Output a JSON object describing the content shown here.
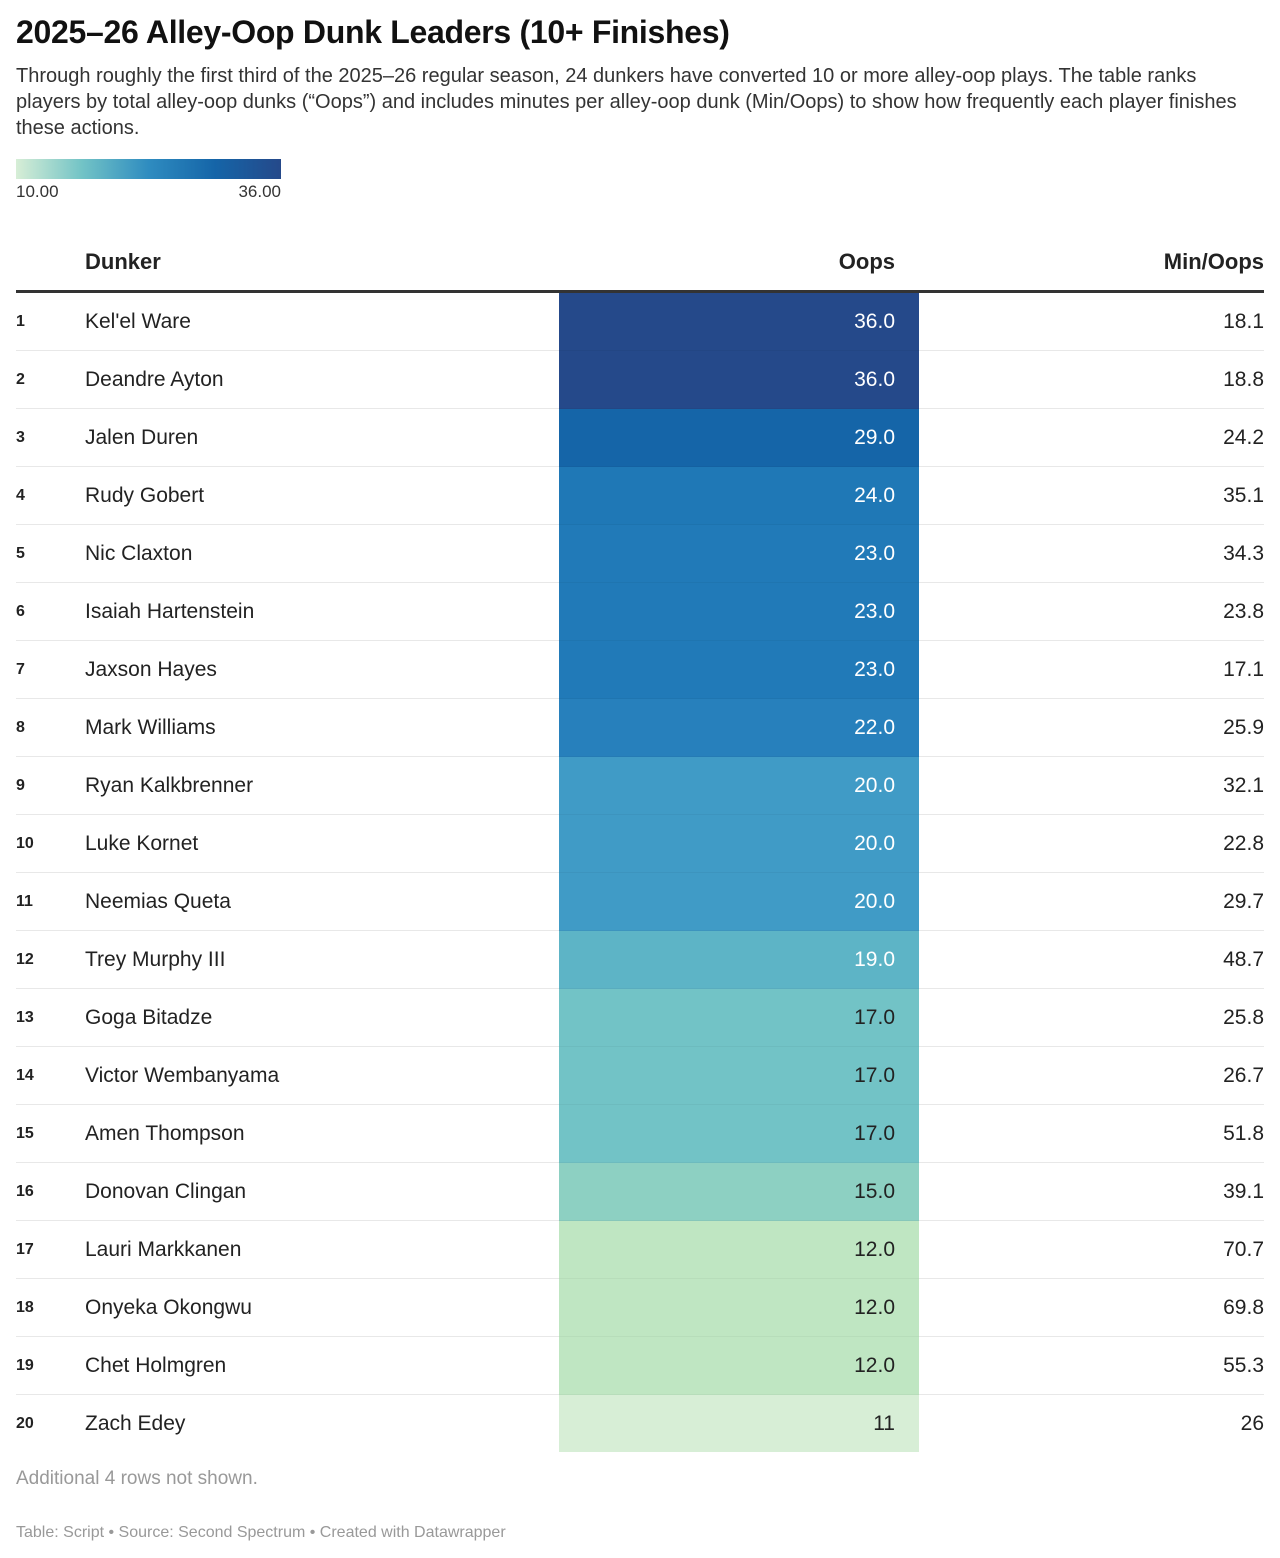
{
  "title": "2025–26 Alley-Oop Dunk Leaders (10+ Finishes)",
  "description": "Through roughly the first third of the 2025–26 regular season, 24 dunkers have converted 10 or more alley-oop plays. The table ranks players by total alley-oop dunks (“Oops”) and includes minutes per alley-oop dunk (Min/Oops) to show how frequently each player finishes these actions.",
  "legend": {
    "min": "10.00",
    "max": "36.00",
    "colors": [
      "#d7eed6",
      "#72c3c6",
      "#2f8cc0",
      "#1565a8",
      "#25498a"
    ]
  },
  "columns": {
    "dunker": "Dunker",
    "oops": "Oops",
    "min_oops": "Min/Oops"
  },
  "note": "Additional 4 rows not shown.",
  "footer": "Table: Script • Source: Second Spectrum • Created with Datawrapper",
  "chart_data": {
    "type": "table",
    "columns": [
      "",
      "Dunker",
      "Oops",
      "Min/Oops"
    ],
    "rows": [
      {
        "rank": "1",
        "name": "Kel'el Ware",
        "oops": "36.0",
        "min": "18.1",
        "color": "#25498a",
        "text": "#fff"
      },
      {
        "rank": "2",
        "name": "Deandre Ayton",
        "oops": "36.0",
        "min": "18.8",
        "color": "#25498a",
        "text": "#fff"
      },
      {
        "rank": "3",
        "name": "Jalen Duren",
        "oops": "29.0",
        "min": "24.2",
        "color": "#1565a8",
        "text": "#fff"
      },
      {
        "rank": "4",
        "name": "Rudy Gobert",
        "oops": "24.0",
        "min": "35.1",
        "color": "#1f78b6",
        "text": "#fff"
      },
      {
        "rank": "5",
        "name": "Nic Claxton",
        "oops": "23.0",
        "min": "34.3",
        "color": "#217ab8",
        "text": "#fff"
      },
      {
        "rank": "6",
        "name": "Isaiah Hartenstein",
        "oops": "23.0",
        "min": "23.8",
        "color": "#217ab8",
        "text": "#fff"
      },
      {
        "rank": "7",
        "name": "Jaxson Hayes",
        "oops": "23.0",
        "min": "17.1",
        "color": "#217ab8",
        "text": "#fff"
      },
      {
        "rank": "8",
        "name": "Mark Williams",
        "oops": "22.0",
        "min": "25.9",
        "color": "#2780bc",
        "text": "#fff"
      },
      {
        "rank": "9",
        "name": "Ryan Kalkbrenner",
        "oops": "20.0",
        "min": "32.1",
        "color": "#409bc6",
        "text": "#fff"
      },
      {
        "rank": "10",
        "name": "Luke Kornet",
        "oops": "20.0",
        "min": "22.8",
        "color": "#409bc6",
        "text": "#fff"
      },
      {
        "rank": "11",
        "name": "Neemias Queta",
        "oops": "20.0",
        "min": "29.7",
        "color": "#409bc6",
        "text": "#fff"
      },
      {
        "rank": "12",
        "name": "Trey Murphy III",
        "oops": "19.0",
        "min": "48.7",
        "color": "#5db4c6",
        "text": "#fff"
      },
      {
        "rank": "13",
        "name": "Goga Bitadze",
        "oops": "17.0",
        "min": "25.8",
        "color": "#72c3c6",
        "text": "#222"
      },
      {
        "rank": "14",
        "name": "Victor Wembanyama",
        "oops": "17.0",
        "min": "26.7",
        "color": "#72c3c6",
        "text": "#222"
      },
      {
        "rank": "15",
        "name": "Amen Thompson",
        "oops": "17.0",
        "min": "51.8",
        "color": "#72c3c6",
        "text": "#222"
      },
      {
        "rank": "16",
        "name": "Donovan Clingan",
        "oops": "15.0",
        "min": "39.1",
        "color": "#8dd0c2",
        "text": "#222"
      },
      {
        "rank": "17",
        "name": "Lauri Markkanen",
        "oops": "12.0",
        "min": "70.7",
        "color": "#bfe6c2",
        "text": "#222"
      },
      {
        "rank": "18",
        "name": "Onyeka Okongwu",
        "oops": "12.0",
        "min": "69.8",
        "color": "#bfe6c2",
        "text": "#222"
      },
      {
        "rank": "19",
        "name": "Chet Holmgren",
        "oops": "12.0",
        "min": "55.3",
        "color": "#bfe6c2",
        "text": "#222"
      },
      {
        "rank": "20",
        "name": "Zach Edey",
        "oops": "11",
        "min": "26",
        "color": "#d7eed6",
        "text": "#222"
      }
    ]
  }
}
